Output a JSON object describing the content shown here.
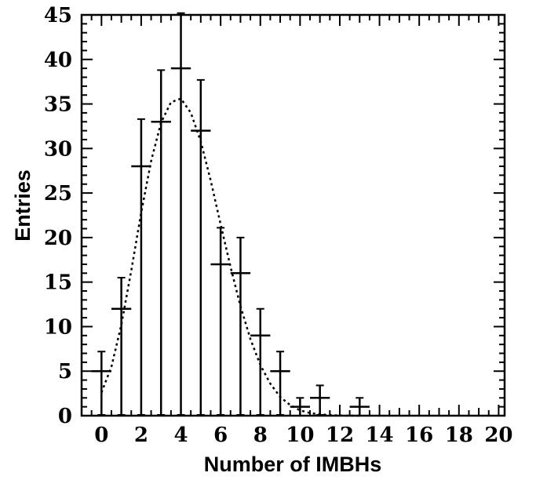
{
  "chart_data": {
    "type": "scatter",
    "xlabel": "Number of IMBHs",
    "ylabel": "Entries",
    "xlim": [
      -1,
      20.3
    ],
    "ylim": [
      0,
      45
    ],
    "x_ticks": [
      0,
      2,
      4,
      6,
      8,
      10,
      12,
      14,
      16,
      18,
      20
    ],
    "y_ticks": [
      0,
      5,
      10,
      15,
      20,
      25,
      30,
      35,
      40,
      45
    ],
    "grid": false,
    "series": [
      {
        "style": "points with error bars",
        "points": [
          {
            "x": 0,
            "y": 5,
            "xerr": 0.5,
            "yerr": 2.2
          },
          {
            "x": 1,
            "y": 12,
            "xerr": 0.5,
            "yerr": 3.5
          },
          {
            "x": 2,
            "y": 28,
            "xerr": 0.5,
            "yerr": 5.3
          },
          {
            "x": 3,
            "y": 33,
            "xerr": 0.5,
            "yerr": 5.8
          },
          {
            "x": 4,
            "y": 39,
            "xerr": 0.5,
            "yerr": 6.2
          },
          {
            "x": 5,
            "y": 32,
            "xerr": 0.5,
            "yerr": 5.7
          },
          {
            "x": 6,
            "y": 17,
            "xerr": 0.5,
            "yerr": 4.1
          },
          {
            "x": 7,
            "y": 16,
            "xerr": 0.5,
            "yerr": 4.0
          },
          {
            "x": 8,
            "y": 9,
            "xerr": 0.5,
            "yerr": 3.0
          },
          {
            "x": 9,
            "y": 5,
            "xerr": 0.5,
            "yerr": 2.2
          },
          {
            "x": 10,
            "y": 1,
            "xerr": 0.5,
            "yerr": 1.0
          },
          {
            "x": 11,
            "y": 2,
            "xerr": 0.5,
            "yerr": 1.4
          },
          {
            "x": 13,
            "y": 1,
            "xerr": 0.5,
            "yerr": 1.0
          }
        ]
      },
      {
        "style": "dotted fit curve",
        "x": [
          0,
          0.5,
          1,
          1.5,
          2,
          2.5,
          3,
          3.5,
          4,
          4.5,
          5,
          5.5,
          6,
          6.5,
          7,
          7.5,
          8,
          8.5,
          9,
          9.5,
          10,
          10.5,
          11,
          11.5,
          12,
          12.5,
          13
        ],
        "y": [
          2.6,
          5.5,
          10.2,
          16.3,
          22.8,
          28.6,
          32.9,
          35.2,
          35.6,
          34.0,
          30.8,
          26.4,
          21.5,
          16.7,
          12.3,
          8.6,
          5.7,
          3.6,
          2.1,
          1.2,
          0.6,
          0.3,
          0.15,
          0.07,
          0.03,
          0.01,
          0
        ]
      }
    ]
  }
}
